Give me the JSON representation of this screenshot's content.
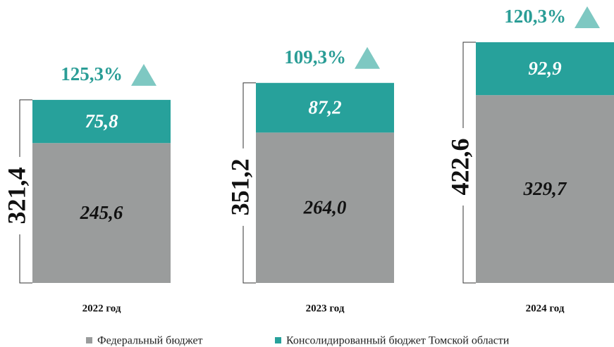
{
  "chart_data": {
    "type": "stacked_bar",
    "categories": [
      "2022 год",
      "2023 год",
      "2024 год"
    ],
    "series": [
      {
        "name": "Федеральный бюджет",
        "color": "#9a9c9c",
        "values": [
          245.6,
          264.0,
          329.7
        ],
        "value_labels": [
          "245,6",
          "264,0",
          "329,7"
        ]
      },
      {
        "name": "Консолидированный бюджет Томской области",
        "color": "#27a19b",
        "values": [
          75.8,
          87.2,
          92.9
        ],
        "value_labels": [
          "75,8",
          "87,2",
          "92,9"
        ]
      }
    ],
    "totals": [
      321.4,
      351.2,
      422.6
    ],
    "total_labels": [
      "321,4",
      "351,2",
      "422,6"
    ],
    "growth": [
      125.3,
      109.3,
      120.3
    ],
    "growth_labels": [
      "125,3%",
      "109,3%",
      "120,3%"
    ],
    "growth_color": "#2a9d96",
    "marker_color": "#7ec8c2"
  }
}
